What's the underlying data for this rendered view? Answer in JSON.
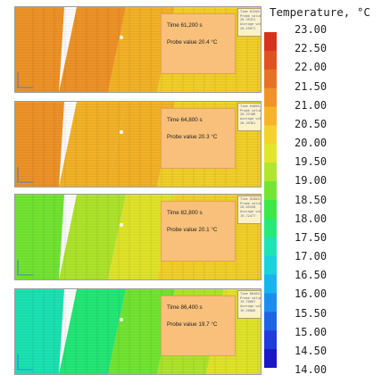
{
  "chart_data": {
    "type": "heatmap",
    "legend": {
      "title": "Temperature, °C",
      "ticks": [
        "23.00",
        "22.50",
        "22.00",
        "21.50",
        "21.00",
        "20.50",
        "20.00",
        "19.50",
        "19.00",
        "18.50",
        "18.00",
        "17.50",
        "17.00",
        "16.50",
        "16.00",
        "15.50",
        "15.00",
        "14.50",
        "14.00"
      ],
      "range": [
        14,
        23
      ],
      "colors": [
        "#1b16c8",
        "#1f3cdc",
        "#1e64e6",
        "#1a8ef0",
        "#18b4ee",
        "#18d2dc",
        "#1ce4b4",
        "#24ea78",
        "#3ae846",
        "#74e632",
        "#b0e62c",
        "#e2e62a",
        "#f4d22a",
        "#f6b428",
        "#f09428",
        "#e87224",
        "#e05220",
        "#d8321e"
      ]
    },
    "panels": [
      {
        "time": "Time 61,200 s",
        "probe": "Probe value 20.4 °C",
        "side": [
          "Time 61200.00 s",
          "Probe value",
          "20.39321",
          "Average value",
          "20.45871"
        ],
        "temps": [
          21.4,
          21.0,
          20.6,
          20.3,
          20.1
        ]
      },
      {
        "time": "Time 64,800 s",
        "probe": "Probe value 20.3 °C",
        "side": [
          "Time 64800.00 s",
          "Probe value",
          "20.32188",
          "Average value",
          "20.39361"
        ],
        "temps": [
          21.2,
          20.8,
          20.5,
          20.3,
          20.1
        ]
      },
      {
        "time": "Time 82,800 s",
        "probe": "Probe value 20.1 °C",
        "side": [
          "Time 82800.00 s",
          "Probe value",
          "20.05250",
          "Average value",
          "19.72477"
        ],
        "temps": [
          18.6,
          19.0,
          19.6,
          20.0,
          20.2
        ]
      },
      {
        "time": "Time 86,400 s",
        "probe": "Probe value 19.7 °C",
        "side": [
          "Time 86400.00 s",
          "Probe value",
          "19.70667",
          "Average value",
          "19.20866"
        ],
        "temps": [
          17.2,
          17.8,
          18.6,
          19.2,
          19.6
        ]
      }
    ]
  }
}
